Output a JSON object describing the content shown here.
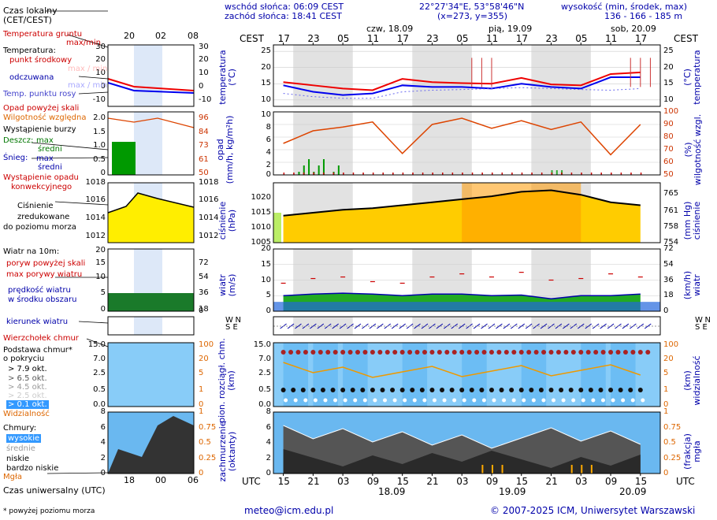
{
  "header": {
    "sunrise": "wschód słońca: 06:09 CEST",
    "sunset": "zachód słońca: 18:41 CEST",
    "coords": "22°27'34\"E, 53°58'46\"N",
    "grid": "(x=273, y=355)",
    "altitude_title": "wysokość (min, środek, max)",
    "altitude_values": "136 - 166 - 185 m",
    "cest": "CEST",
    "utc": "UTC"
  },
  "days_top": [
    "czw, 18.09",
    "pią, 19.09",
    "sob, 20.09"
  ],
  "days_bottom": [
    "18.09",
    "19.09",
    "20.09"
  ],
  "hours_top": [
    "17",
    "23",
    "05",
    "11",
    "17",
    "23",
    "05",
    "11",
    "17",
    "23",
    "05",
    "11",
    "17"
  ],
  "hours_bottom": [
    "15",
    "21",
    "03",
    "09",
    "15",
    "21",
    "03",
    "09",
    "15",
    "21",
    "03",
    "09",
    "15"
  ],
  "legend": {
    "local_time": "Czas lokalny",
    "local_time_sub": "(CET/CEST)",
    "local_hours": [
      "20",
      "02",
      "08"
    ],
    "utc_hours": [
      "18",
      "00",
      "06"
    ],
    "ground_temp": "Temperatura gruntu",
    "maxmin": "max/min",
    "temperature": "Temperatura:",
    "dew_point": "punkt środkowy",
    "max_min_gray": "max / min",
    "feels": "odczuwana",
    "max_min_gray2": "max / min",
    "dew_temp": "Temp. punktu rosy",
    "precip_above": "Opad powyżej skali",
    "humidity": "Wilgotność względna",
    "storm": "Wystąpienie burzy",
    "rain": "Deszcz:",
    "rain_max": "max",
    "rain_mid": "średni",
    "snow": "Śnieg:",
    "snow_max": "max",
    "snow_mid": "średni",
    "convective": "Wystąpienie opadu",
    "convective2": "konwekcyjnego",
    "pressure": "Ciśnienie",
    "pressure2": "zredukowane",
    "pressure3": "do poziomu morza",
    "wind": "Wiatr na 10m:",
    "gust_above": "poryw powyżej skali",
    "gust_max": "max porywy wiatru",
    "wind_speed": "prędkość wiatru",
    "wind_area": "w środku obszaru",
    "wind_dir": "kierunek wiatru",
    "cloud_top": "Wierzchołek chmur",
    "cloud_base": "Podstawa chmur*",
    "cloud_base2": "o pokryciu",
    "okt1": "> 7.9 okt.",
    "okt2": "> 6.5 okt.",
    "okt3": "> 4.5 okt.",
    "okt4": "> 2.5 okt.",
    "okt5": "> 0.1 okt.",
    "visibility": "Widzialność",
    "clouds": "Chmury:",
    "high": "wysokie",
    "mid": "średnie",
    "low": "niskie",
    "vlow": "bardzo niskie",
    "fog": "Mgła",
    "utc_time": "Czas uniwersalny (UTC)",
    "footnote": "* powyżej poziomu morza"
  },
  "axes": {
    "temp": "temperatura\n(°C)",
    "temp_r": "(°C)\ntemperatura",
    "precip": "opad\n(mm/h, kg/m²h)",
    "humid_r": "(%)\nwilgotność wzgl.",
    "press": "ciśnienie\n(hPa)",
    "press_r": "(mm Hg)\nciśnienie",
    "wind": "wiatr\n(m/s)",
    "wind_r": "(km/h)\nwiatr",
    "cloudbase": "pion. rozciągł. chm.\n(km)",
    "vis_r": "(km)\nwidzialność",
    "cover": "zachmurzenie\n(oktanty)",
    "fog_r": "(frakcja)\nmgła"
  },
  "ticks": {
    "temp_l": [
      "25",
      "20",
      "15",
      "10"
    ],
    "temp_r": [
      "25",
      "20",
      "15",
      "10"
    ],
    "precip_l": [
      "10",
      "8",
      "6",
      "4",
      "2",
      "0"
    ],
    "humid_r": [
      "100",
      "90",
      "80",
      "70",
      "60",
      "50"
    ],
    "press_l": [
      "1020",
      "1015",
      "1010",
      "1005"
    ],
    "press_r": [
      "765",
      "761",
      "758",
      "754"
    ],
    "wind_l": [
      "20",
      "15",
      "10",
      "5",
      "0"
    ],
    "wind_r": [
      "72",
      "54",
      "36",
      "18",
      "0"
    ],
    "cb_l": [
      "15.0",
      "7.0",
      "2.5",
      "0.5",
      "0.0"
    ],
    "vis_r": [
      "100",
      "20",
      "5",
      "1",
      "0"
    ],
    "cov_l": [
      "8",
      "6",
      "4",
      "2",
      "0"
    ],
    "fog_r": [
      "1",
      "0.75",
      "0.5",
      "0.25",
      "0"
    ],
    "mini_temp_l": [
      "30",
      "20",
      "10",
      "0",
      "-10"
    ],
    "mini_temp_r": [
      "30",
      "20",
      "10",
      "0",
      "-10"
    ],
    "mini_pr_l": [
      "2.0",
      "1.5",
      "1.0",
      "0.5",
      "0"
    ],
    "mini_hum_r": [
      "96",
      "84",
      "73",
      "61",
      "50"
    ],
    "mini_press_l": [
      "1018",
      "1016",
      "1014",
      "1012"
    ],
    "mini_press_r": [
      "1018",
      "1016",
      "1014",
      "1012"
    ],
    "mini_wind_l": [
      "20",
      "15",
      "10",
      "5",
      "0"
    ],
    "mini_wind_r": [
      "72",
      "54",
      "36",
      "18",
      "0"
    ],
    "mini_cb_l": [
      "15.0",
      "7.0",
      "2.5",
      "0.5",
      "0.0"
    ],
    "mini_vis_r": [
      "100",
      "20",
      "5",
      "1",
      "0"
    ],
    "mini_cov_l": [
      "8",
      "6",
      "4",
      "2",
      "0"
    ],
    "mini_fog_r": [
      "1",
      "0.75",
      "0.5",
      "0.25",
      "0"
    ]
  },
  "wind_compass": [
    "N",
    "W",
    "S",
    "E"
  ],
  "footer": {
    "email": "meteo@icm.edu.pl",
    "copyright": "© 2007-2025 ICM, Uniwersytet Warszawski"
  },
  "chart_data": [
    {
      "type": "line",
      "title": "temperatura (°C)",
      "x_hours_from_start": [
        0,
        6,
        12,
        18,
        24,
        30,
        36,
        42,
        48,
        54,
        60,
        66,
        72
      ],
      "ylim": [
        8,
        27
      ],
      "series": [
        {
          "name": "temperatura",
          "color": "#ee0000",
          "values": [
            15.5,
            14.5,
            13.5,
            13.0,
            16.5,
            15.5,
            15.2,
            15.0,
            16.8,
            14.8,
            14.5,
            18.0,
            18.5
          ]
        },
        {
          "name": "odczuwana",
          "color": "#0000ee",
          "values": [
            14.5,
            12.5,
            11.5,
            12.0,
            14.5,
            14.0,
            14.0,
            13.5,
            15.0,
            14.0,
            13.5,
            17.0,
            17.0
          ]
        },
        {
          "name": "punkt rosy",
          "color": "#6666ee",
          "values": [
            12.0,
            11.0,
            10.5,
            10.5,
            12.5,
            13.0,
            13.2,
            13.5,
            13.8,
            13.5,
            13.2,
            13.0,
            13.5
          ]
        }
      ]
    },
    {
      "type": "bar",
      "title": "opad (mm/h)",
      "ylim": [
        0,
        10
      ],
      "humidity_ylim": [
        50,
        100
      ],
      "humidity": [
        75,
        85,
        88,
        92,
        67,
        90,
        95,
        87,
        93,
        86,
        92,
        66,
        90
      ]
    },
    {
      "type": "area",
      "title": "ciśnienie (hPa)",
      "ylim": [
        1005,
        1025
      ],
      "values": [
        1014.0,
        1015.0,
        1016.0,
        1016.5,
        1017.5,
        1018.5,
        1019.5,
        1020.5,
        1022.0,
        1022.5,
        1021.0,
        1018.5,
        1017.5
      ]
    },
    {
      "type": "area",
      "title": "wiatr (m/s)",
      "ylim": [
        0,
        20
      ],
      "speed": [
        5.0,
        5.5,
        5.8,
        5.5,
        5.0,
        5.5,
        5.5,
        5.0,
        5.2,
        4.0,
        5.0,
        5.0,
        5.5
      ],
      "gust": [
        9.0,
        10.5,
        11.0,
        9.5,
        9.0,
        11.0,
        12.0,
        11.0,
        12.5,
        10.0,
        10.5,
        12.0,
        11.0
      ]
    },
    {
      "type": "scatter",
      "title": "podstawa chmur (km)",
      "ylim_labels": [
        "0.0",
        "0.5",
        "2.5",
        "7.0",
        "15.0"
      ]
    },
    {
      "type": "area",
      "title": "zachmurzenie (oktanty)",
      "ylim": [
        0,
        8
      ]
    }
  ]
}
